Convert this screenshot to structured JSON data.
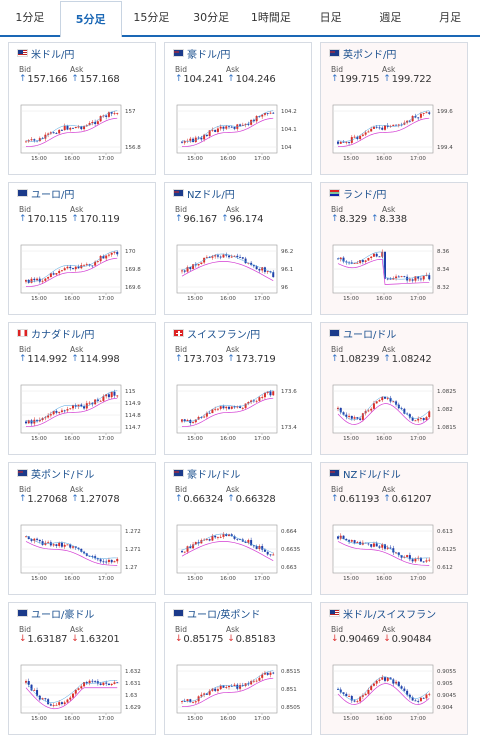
{
  "tabs": [
    {
      "label": "1分足"
    },
    {
      "label": "5分足"
    },
    {
      "label": "15分足"
    },
    {
      "label": "30分足"
    },
    {
      "label": "1時間足"
    },
    {
      "label": "日足"
    },
    {
      "label": "週足"
    },
    {
      "label": "月足"
    }
  ],
  "active_tab": 1,
  "bid_label": "Bid",
  "ask_label": "Ask",
  "up_color": "#2e6fc4",
  "down_color": "#d33333",
  "cards": [
    {
      "pair": "米ドル/円",
      "flag": "us",
      "bid": "157.166",
      "ask": "157.168",
      "dir": "up",
      "ticks": [
        "157",
        "156.8"
      ],
      "times": [
        "15:00",
        "16:00",
        "17:00"
      ],
      "trend": "up"
    },
    {
      "pair": "豪ドル/円",
      "flag": "au",
      "bid": "104.241",
      "ask": "104.246",
      "dir": "up",
      "ticks": [
        "104.2",
        "104.1",
        "104"
      ],
      "times": [
        "15:00",
        "16:00",
        "17:00"
      ],
      "trend": "up"
    },
    {
      "pair": "英ポンド/円",
      "flag": "uk",
      "bid": "199.715",
      "ask": "199.722",
      "dir": "up",
      "ticks": [
        "199.6",
        "199.4"
      ],
      "times": [
        "15:00",
        "16:00",
        "17:00"
      ],
      "trend": "up"
    },
    {
      "pair": "ユーロ/円",
      "flag": "eu",
      "bid": "170.115",
      "ask": "170.119",
      "dir": "up",
      "ticks": [
        "170",
        "169.8",
        "169.6"
      ],
      "times": [
        "15:00",
        "16:00",
        "17:00"
      ],
      "trend": "up"
    },
    {
      "pair": "NZドル/円",
      "flag": "nz",
      "bid": "96.167",
      "ask": "96.174",
      "dir": "up",
      "ticks": [
        "96.2",
        "96.1",
        "96"
      ],
      "times": [
        "15:00",
        "16:00",
        "17:00"
      ],
      "trend": "hump"
    },
    {
      "pair": "ランド/円",
      "flag": "za",
      "bid": "8.329",
      "ask": "8.338",
      "dir": "up",
      "ticks": [
        "8.36",
        "8.34",
        "8.32"
      ],
      "times": [
        "15:00",
        "16:00",
        "17:00"
      ],
      "trend": "drop"
    },
    {
      "pair": "カナダドル/円",
      "flag": "ca",
      "bid": "114.992",
      "ask": "114.998",
      "dir": "up",
      "ticks": [
        "115",
        "114.9",
        "114.8",
        "114.7"
      ],
      "times": [
        "15:00",
        "16:00",
        "17:00"
      ],
      "trend": "up"
    },
    {
      "pair": "スイスフラン/円",
      "flag": "ch",
      "bid": "173.703",
      "ask": "173.719",
      "dir": "up",
      "ticks": [
        "173.6",
        "173.4"
      ],
      "times": [
        "15:00",
        "16:00",
        "17:00"
      ],
      "trend": "up"
    },
    {
      "pair": "ユーロ/ドル",
      "flag": "eu",
      "bid": "1.08239",
      "ask": "1.08242",
      "dir": "up",
      "ticks": [
        "1.0825",
        "1.082",
        "1.0815"
      ],
      "times": [
        "15:00",
        "16:00",
        "17:00"
      ],
      "trend": "wave"
    },
    {
      "pair": "英ポンド/ドル",
      "flag": "uk",
      "bid": "1.27068",
      "ask": "1.27078",
      "dir": "up",
      "ticks": [
        "1.272",
        "1.271",
        "1.27"
      ],
      "times": [
        "15:00",
        "16:00",
        "17:00"
      ],
      "trend": "down"
    },
    {
      "pair": "豪ドル/ドル",
      "flag": "au",
      "bid": "0.66324",
      "ask": "0.66328",
      "dir": "up",
      "ticks": [
        "0.664",
        "0.6635",
        "0.663"
      ],
      "times": [
        "15:00",
        "16:00",
        "17:00"
      ],
      "trend": "hump"
    },
    {
      "pair": "NZドル/ドル",
      "flag": "nz",
      "bid": "0.61193",
      "ask": "0.61207",
      "dir": "up",
      "ticks": [
        "0.613",
        "0.6125",
        "0.612"
      ],
      "times": [
        "15:00",
        "16:00",
        "17:00"
      ],
      "trend": "down"
    },
    {
      "pair": "ユーロ/豪ドル",
      "flag": "eu",
      "bid": "1.63187",
      "ask": "1.63201",
      "dir": "down",
      "ticks": [
        "1.632",
        "1.631",
        "1.63",
        "1.629"
      ],
      "times": [
        "15:00",
        "16:00",
        "17:00"
      ],
      "trend": "valley"
    },
    {
      "pair": "ユーロ/英ポンド",
      "flag": "eu",
      "bid": "0.85175",
      "ask": "0.85183",
      "dir": "down",
      "ticks": [
        "0.8515",
        "0.851",
        "0.8505"
      ],
      "times": [
        "15:00",
        "16:00",
        "17:00"
      ],
      "trend": "up"
    },
    {
      "pair": "米ドル/スイスフラン",
      "flag": "us",
      "bid": "0.90469",
      "ask": "0.90484",
      "dir": "down",
      "ticks": [
        "0.9055",
        "0.905",
        "0.9045",
        "0.904"
      ],
      "times": [
        "15:00",
        "16:00",
        "17:00"
      ],
      "trend": "wave"
    }
  ]
}
